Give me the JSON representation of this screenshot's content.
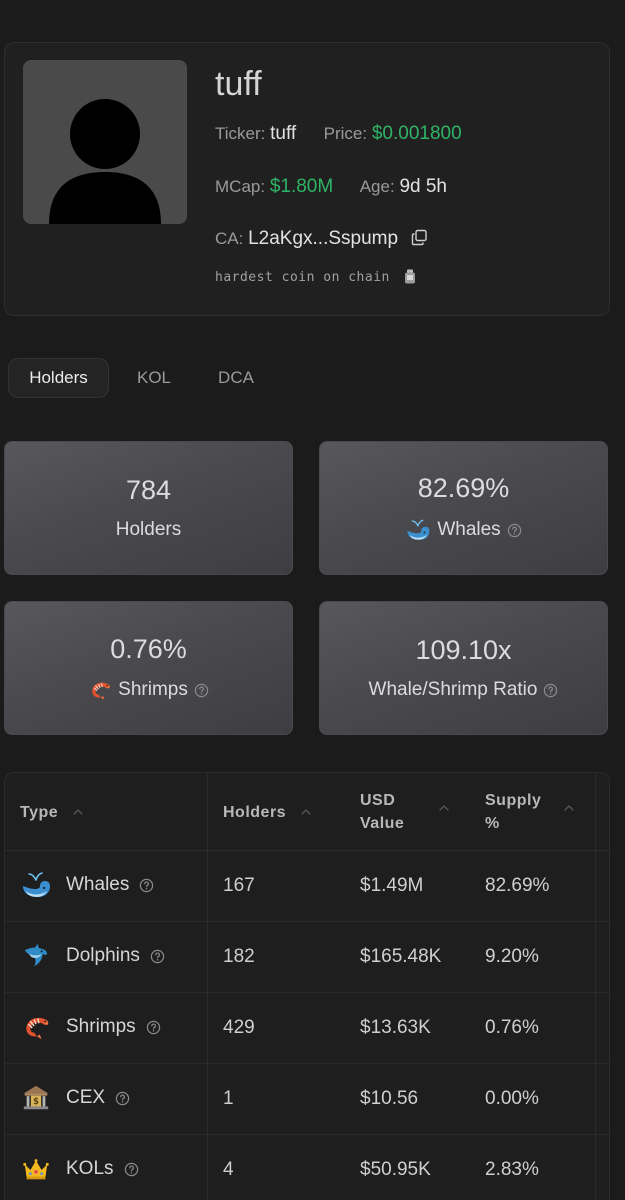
{
  "coin": {
    "name": "tuff",
    "ticker_label": "Ticker:",
    "ticker": "tuff",
    "price_label": "Price:",
    "price": "$0.001800",
    "mcap_label": "MCap:",
    "mcap": "$1.80M",
    "age_label": "Age:",
    "age": "9d 5h",
    "ca_label": "CA:",
    "ca": "L2aKgx...Sspump",
    "description": "hardest coin on chain",
    "colors": {
      "positive": "#2fb466"
    }
  },
  "tabs": [
    {
      "label": "Holders",
      "active": true
    },
    {
      "label": "KOL",
      "active": false
    },
    {
      "label": "DCA",
      "active": false
    }
  ],
  "stats": [
    {
      "value": "784",
      "label": "Holders",
      "icon": ""
    },
    {
      "value": "82.69%",
      "label": "Whales",
      "icon": "whale-icon"
    },
    {
      "value": "0.76%",
      "label": "Shrimps",
      "icon": "shrimp-icon"
    },
    {
      "value": "109.10x",
      "label": "Whale/Shrimp Ratio",
      "icon": ""
    }
  ],
  "table": {
    "columns": [
      "Type",
      "Holders",
      "USD Value",
      "Supply %"
    ],
    "rows": [
      {
        "type": "Whales",
        "icon": "whale-icon",
        "holders": "167",
        "usd": "$1.49M",
        "supply": "82.69%"
      },
      {
        "type": "Dolphins",
        "icon": "dolphin-icon",
        "holders": "182",
        "usd": "$165.48K",
        "supply": "9.20%"
      },
      {
        "type": "Shrimps",
        "icon": "shrimp-icon",
        "holders": "429",
        "usd": "$13.63K",
        "supply": "0.76%"
      },
      {
        "type": "CEX",
        "icon": "bank-icon",
        "holders": "1",
        "usd": "$10.56",
        "supply": "0.00%"
      },
      {
        "type": "KOLs",
        "icon": "crown-icon",
        "holders": "4",
        "usd": "$50.95K",
        "supply": "2.83%"
      }
    ]
  }
}
